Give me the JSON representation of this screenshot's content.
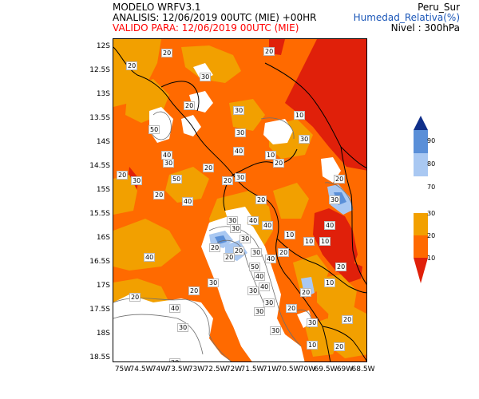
{
  "header": {
    "model": "MODELO WRFV3.1",
    "analysis": "ANALISIS: 12/06/2019 00UTC (MIE) +00HR",
    "valid": "VALIDO PARA: 12/06/2019 00UTC (MIE)",
    "region": "Peru_Sur",
    "variable": "Humedad_Relativa(%)",
    "level": "Nivel : 300hPa"
  },
  "colors": {
    "valid_text": "#ff0000",
    "variable_text": "#1a56b8",
    "range_lt10": "#e0200a",
    "range_10_20": "#ff6a00",
    "range_20_30": "#f2a000",
    "range_30_70": "#ffffff",
    "range_70_80": "#a9c8f2",
    "range_80_90": "#5a8fd8",
    "range_gt90": "#102f8a",
    "contour": "#6f6f6f",
    "border": "#000000"
  },
  "axes": {
    "y_ticks": [
      "12S",
      "12.5S",
      "13S",
      "13.5S",
      "14S",
      "14.5S",
      "15S",
      "15.5S",
      "16S",
      "16.5S",
      "17S",
      "17.5S",
      "18S",
      "18.5S"
    ],
    "x_ticks": [
      "75W",
      "74.5W",
      "74W",
      "73.5W",
      "73W",
      "72.5W",
      "72W",
      "71.5W",
      "71W",
      "70.5W",
      "70W",
      "69.5W",
      "69W",
      "68.5W"
    ]
  },
  "colorbar": {
    "labels": [
      "90",
      "80",
      "70",
      "30",
      "20",
      "10"
    ]
  },
  "contour_labels": [
    "20",
    "20",
    "30",
    "20",
    "30",
    "50",
    "40",
    "40",
    "30",
    "20",
    "20",
    "30",
    "20",
    "40",
    "30",
    "20",
    "10",
    "10",
    "30",
    "20",
    "30",
    "50",
    "20",
    "20",
    "40",
    "30",
    "40",
    "30",
    "30",
    "20",
    "20",
    "30",
    "40",
    "50",
    "40",
    "20",
    "10",
    "20",
    "10",
    "40",
    "10",
    "30",
    "20",
    "20",
    "40",
    "30",
    "40",
    "30",
    "30",
    "20",
    "20",
    "30",
    "10",
    "20",
    "30",
    "40",
    "30",
    "20",
    "20",
    "10",
    "20",
    "30",
    "20"
  ]
}
